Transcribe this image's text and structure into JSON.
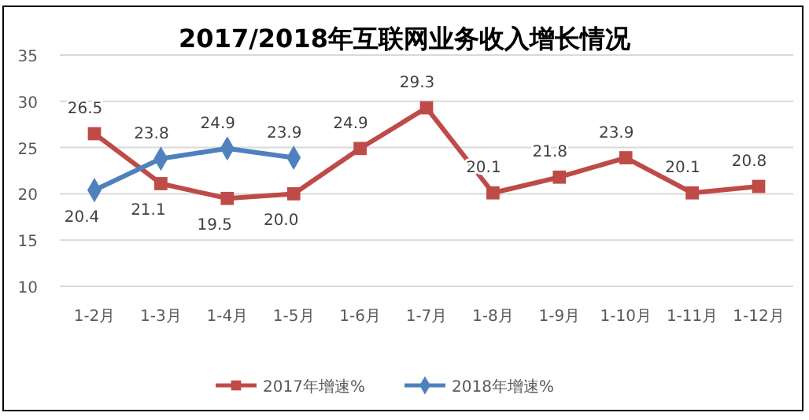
{
  "chart_data": {
    "type": "line",
    "title": "2017/2018年互联网业务收入增长情况",
    "categories": [
      "1-2月",
      "1-3月",
      "1-4月",
      "1-5月",
      "1-6月",
      "1-7月",
      "1-8月",
      "1-9月",
      "1-10月",
      "1-11月",
      "1-12月"
    ],
    "series": [
      {
        "name": "2017年增速%",
        "color": "#be4b48",
        "marker": "square",
        "values": [
          26.5,
          21.1,
          19.5,
          20.0,
          24.9,
          29.3,
          20.1,
          21.8,
          23.9,
          20.1,
          20.8
        ],
        "value_labels": [
          "26.5",
          "21.1",
          "19.5",
          "20.0",
          "24.9",
          "29.3",
          "20.1",
          "21.8",
          "23.9",
          "20.1",
          "20.8"
        ]
      },
      {
        "name": "2018年增速%",
        "color": "#4f81bd",
        "marker": "diamond",
        "values": [
          20.4,
          23.8,
          24.9,
          23.9,
          null,
          null,
          null,
          null,
          null,
          null,
          null
        ],
        "value_labels": [
          "20.4",
          "23.8",
          "24.9",
          "23.9",
          null,
          null,
          null,
          null,
          null,
          null,
          null
        ]
      }
    ],
    "ylim": [
      10,
      35
    ],
    "yticks": [
      10,
      15,
      20,
      25,
      30,
      35
    ],
    "grid": "y",
    "legend": "bottom"
  }
}
